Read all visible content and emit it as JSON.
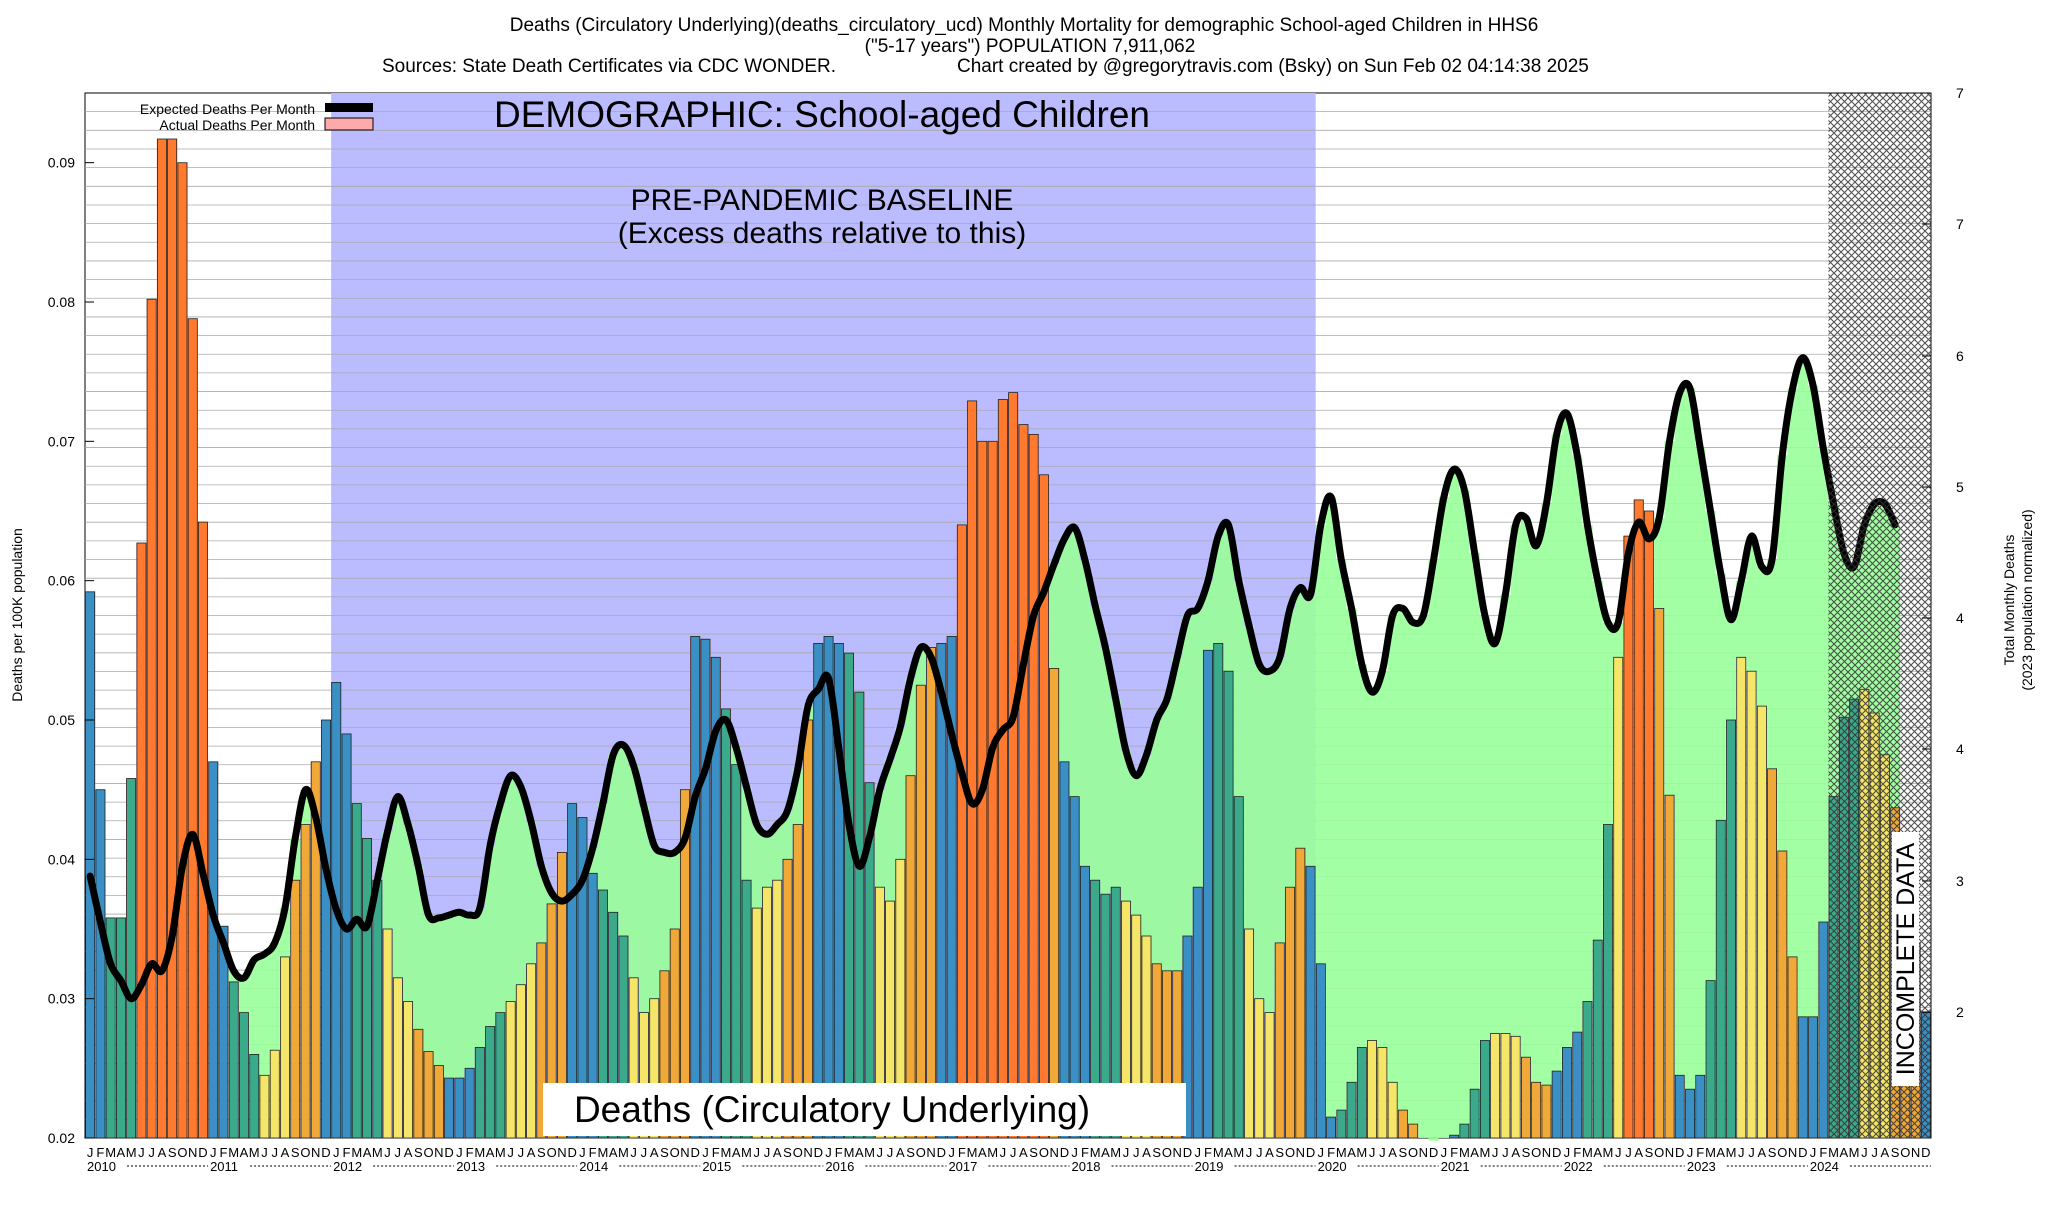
{
  "header": {
    "line1": "Deaths (Circulatory Underlying)(deaths_circulatory_ucd) Monthly Mortality for demographic School-aged Children in HHS6",
    "line2": "(\"5-17 years\") POPULATION 7,911,062",
    "line3_left": "Sources: State Death Certificates via CDC WONDER.",
    "line3_right": "Chart created by @gregorytravis.com (Bsky) on Sun Feb 02 04:14:38 2025"
  },
  "legend": {
    "expected": "Expected Deaths Per Month",
    "actual": "Actual Deaths Per Month"
  },
  "annotations": {
    "demographic": "DEMOGRAPHIC: School-aged Children",
    "baseline_line1": "PRE-PANDEMIC BASELINE",
    "baseline_line2": "(Excess deaths relative to this)",
    "metric_label": "Deaths (Circulatory Underlying)",
    "incomplete": "INCOMPLETE DATA"
  },
  "axes": {
    "ylabel_left": "Deaths per 100K population",
    "ylabel_right_line1": "Total Monthly Deaths",
    "ylabel_right_line2": "(2023 population normalized)",
    "left_ticks": [
      "0.02",
      "0.03",
      "0.04",
      "0.05",
      "0.06",
      "0.07",
      "0.08",
      "0.09"
    ],
    "right_ticks": [
      "2",
      "3",
      "4",
      "4",
      "5",
      "6",
      "7",
      "7"
    ],
    "month_letters": [
      "J",
      "F",
      "M",
      "A",
      "M",
      "J",
      "J",
      "A",
      "S",
      "O",
      "N",
      "D"
    ],
    "years": [
      "2010",
      "2011",
      "2012",
      "2013",
      "2014",
      "2015",
      "2016",
      "2017",
      "2018",
      "2019",
      "2020",
      "2021",
      "2022",
      "2023",
      "2024"
    ]
  },
  "colors": {
    "baseline_band": "#bbbbff",
    "excess_fill": "#99ff99",
    "below_fill": "#ff9999",
    "expected_line": "#000000",
    "winter_bar": "#3a8fc4",
    "spring_bar": "#3aaa8a",
    "summer_bar": "#f5e66a",
    "fall_bar": "#f0a838",
    "peak_bar": "#ff7a2e",
    "incomplete_hatch": "#555555"
  },
  "chart_data": {
    "type": "bar",
    "title": "Deaths (Circulatory Underlying)(deaths_circulatory_ucd) Monthly Mortality for demographic School-aged Children in HHS6",
    "xlabel": "",
    "ylabel": "Deaths per 100K population",
    "ylim": [
      0.02,
      0.095
    ],
    "y2lim_label": "Total Monthly Deaths (2023 population normalized)",
    "x_start": "2010-01",
    "baseline_period": [
      "2012-01",
      "2019-12"
    ],
    "incomplete_from": "2024-03",
    "grid": true,
    "legend_position": "top-left",
    "series": [
      {
        "name": "Actual Deaths Per Month",
        "values": [
          0.0592,
          0.045,
          0.0358,
          0.0358,
          0.0458,
          0.0627,
          0.0802,
          0.0917,
          0.0917,
          0.09,
          0.0788,
          0.0642,
          0.047,
          0.0352,
          0.0312,
          0.029,
          0.026,
          0.0245,
          0.0263,
          0.033,
          0.0385,
          0.0425,
          0.047,
          0.05,
          0.0527,
          0.049,
          0.044,
          0.0415,
          0.0385,
          0.035,
          0.0315,
          0.0298,
          0.0278,
          0.0262,
          0.0252,
          0.0243,
          0.0243,
          0.025,
          0.0265,
          0.028,
          0.029,
          0.0298,
          0.031,
          0.0325,
          0.034,
          0.0368,
          0.0405,
          0.044,
          0.043,
          0.039,
          0.0378,
          0.0362,
          0.0345,
          0.0315,
          0.029,
          0.03,
          0.032,
          0.035,
          0.045,
          0.056,
          0.0558,
          0.0545,
          0.0508,
          0.0468,
          0.0385,
          0.0365,
          0.038,
          0.0385,
          0.04,
          0.0425,
          0.05,
          0.0555,
          0.056,
          0.0555,
          0.0548,
          0.052,
          0.0455,
          0.038,
          0.037,
          0.04,
          0.046,
          0.0525,
          0.0552,
          0.0555,
          0.056,
          0.064,
          0.0729,
          0.07,
          0.07,
          0.073,
          0.0735,
          0.0712,
          0.0705,
          0.0676,
          0.0537,
          0.047,
          0.0445,
          0.0395,
          0.0385,
          0.0375,
          0.038,
          0.037,
          0.036,
          0.0345,
          0.0325,
          0.032,
          0.032,
          0.0345,
          0.038,
          0.055,
          0.0555,
          0.0535,
          0.0445,
          0.035,
          0.03,
          0.029,
          0.034,
          0.038,
          0.0408,
          0.0395,
          0.0325,
          0.0215,
          0.022,
          0.024,
          0.0265,
          0.027,
          0.0265,
          0.024,
          0.022,
          0.021,
          0.02,
          0.0198,
          0.02,
          0.0202,
          0.021,
          0.0235,
          0.027,
          0.0275,
          0.0275,
          0.0273,
          0.0258,
          0.024,
          0.0238,
          0.0248,
          0.0265,
          0.0276,
          0.0298,
          0.0342,
          0.0425,
          0.0545,
          0.0632,
          0.0658,
          0.065,
          0.058,
          0.0446,
          0.0245,
          0.0235,
          0.0245,
          0.0313,
          0.0428,
          0.05,
          0.0545,
          0.0535,
          0.051,
          0.0465,
          0.0406,
          0.033,
          0.0287,
          0.0287,
          0.0355,
          0.0445,
          0.0502,
          0.0515,
          0.0522,
          0.0505,
          0.0475,
          0.0437,
          0.0392,
          0.034,
          0.029
        ]
      },
      {
        "name": "Expected Deaths Per Month",
        "values": [
          0.0388,
          0.0355,
          0.0325,
          0.0313,
          0.03,
          0.031,
          0.0325,
          0.032,
          0.0345,
          0.0395,
          0.0418,
          0.039,
          0.036,
          0.034,
          0.032,
          0.0315,
          0.0328,
          0.0332,
          0.034,
          0.0365,
          0.0415,
          0.045,
          0.043,
          0.0393,
          0.0364,
          0.035,
          0.0357,
          0.0352,
          0.0385,
          0.042,
          0.0445,
          0.0425,
          0.0395,
          0.036,
          0.0358,
          0.036,
          0.0362,
          0.036,
          0.0365,
          0.041,
          0.044,
          0.046,
          0.0452,
          0.0427,
          0.0395,
          0.0376,
          0.037,
          0.0375,
          0.0385,
          0.0408,
          0.044,
          0.0475,
          0.0482,
          0.0467,
          0.0438,
          0.041,
          0.0405,
          0.0405,
          0.0415,
          0.0445,
          0.0465,
          0.0492,
          0.05,
          0.048,
          0.0452,
          0.0425,
          0.0418,
          0.0425,
          0.0435,
          0.0465,
          0.051,
          0.0522,
          0.053,
          0.048,
          0.0425,
          0.0395,
          0.0416,
          0.045,
          0.0472,
          0.0495,
          0.053,
          0.0552,
          0.0545,
          0.052,
          0.049,
          0.0462,
          0.044,
          0.045,
          0.048,
          0.0493,
          0.0502,
          0.054,
          0.0575,
          0.0592,
          0.0612,
          0.063,
          0.0638,
          0.0615,
          0.0582,
          0.0552,
          0.0515,
          0.0478,
          0.046,
          0.0475,
          0.05,
          0.0515,
          0.0545,
          0.0575,
          0.058,
          0.06,
          0.0632,
          0.064,
          0.06,
          0.0568,
          0.054,
          0.0535,
          0.0545,
          0.058,
          0.0595,
          0.059,
          0.064,
          0.066,
          0.0615,
          0.058,
          0.054,
          0.052,
          0.0535,
          0.0575,
          0.058,
          0.057,
          0.0575,
          0.0615,
          0.066,
          0.068,
          0.0665,
          0.062,
          0.0575,
          0.0555,
          0.059,
          0.064,
          0.0645,
          0.0625,
          0.0655,
          0.0705,
          0.072,
          0.069,
          0.064,
          0.06,
          0.057,
          0.057,
          0.062,
          0.0642,
          0.063,
          0.0645,
          0.07,
          0.0735,
          0.0738,
          0.0695,
          0.065,
          0.0605,
          0.0572,
          0.06,
          0.0632,
          0.061,
          0.0615,
          0.069,
          0.0738,
          0.076,
          0.074,
          0.0695,
          0.0655,
          0.062,
          0.061,
          0.064,
          0.0655,
          0.0655,
          0.064
        ]
      }
    ]
  }
}
